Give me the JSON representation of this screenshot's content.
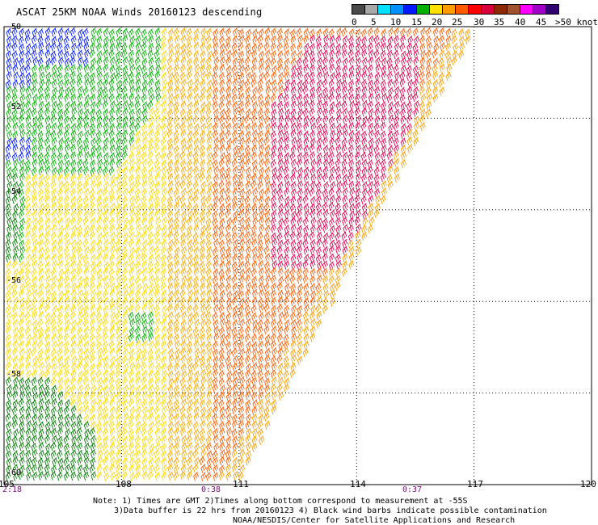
{
  "header": {
    "title": "ASCAT 25KM NOAA Winds 20160123 descending"
  },
  "colorbar": {
    "labels": [
      "0",
      "5",
      "10",
      "15",
      "20",
      "25",
      "30",
      "35",
      "40",
      "45"
    ],
    "unit_label": ">50 knots",
    "colors": [
      "#4a4a4a",
      "#a8a8a8",
      "#00e0ff",
      "#0090ff",
      "#0018ff",
      "#00b000",
      "#ffe000",
      "#ff9c00",
      "#ff5a00",
      "#ff0000",
      "#d8003c",
      "#8b2a00",
      "#a0522d",
      "#ff00ff",
      "#a000c8",
      "#300070"
    ]
  },
  "map": {
    "lat_labels": [
      "-50",
      "-52",
      "-54",
      "-56",
      "-58",
      "-60"
    ],
    "lon_labels": [
      "105",
      "108",
      "111",
      "114",
      "117",
      "120"
    ],
    "lon_range": [
      105,
      120
    ],
    "lat_range": [
      -50,
      -60
    ],
    "time_labels": [
      {
        "text": "2:18",
        "lon": 105.2
      },
      {
        "text": "0:38",
        "lon": 110.3
      },
      {
        "text": "0:37",
        "lon": 115.3
      }
    ]
  },
  "notes": {
    "line1": "Note: 1) Times are GMT 2)Times along bottom correspond to measurement at -55S",
    "line2": "3)Data buffer is 22 hrs from 20160123 4) Black wind barbs indicate possible contamination",
    "line3": "NOAA/NESDIS/Center for Satellite Applications and Research"
  }
}
